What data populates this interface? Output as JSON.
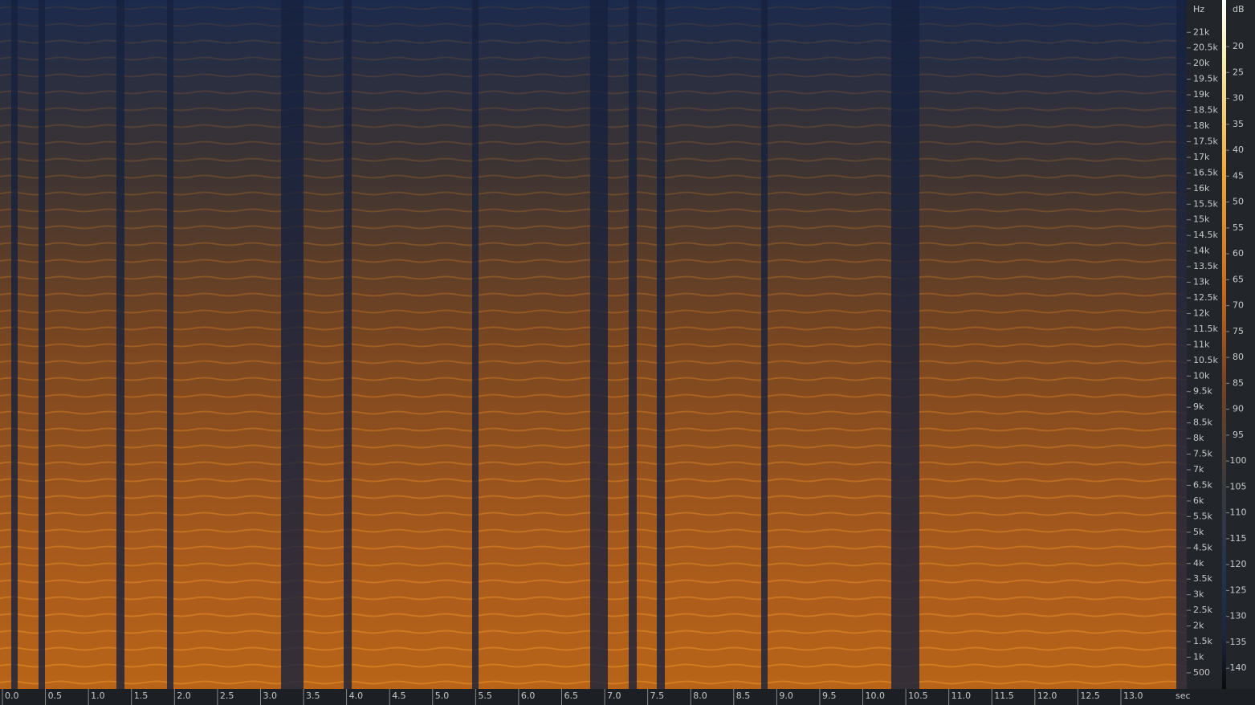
{
  "chart_data": {
    "type": "spectrogram",
    "x_label": "sec",
    "y_label": "Hz",
    "colorbar_label": "dB",
    "xlim": [
      0,
      13.77
    ],
    "ylim": [
      0,
      22050
    ],
    "zlim": [
      11,
      144
    ],
    "xticks": [
      {
        "value": 0,
        "label": "0.0"
      },
      0.5,
      {
        "value": 1,
        "label": "1.0"
      },
      1.5,
      {
        "value": 2,
        "label": "2.0"
      },
      2.5,
      {
        "value": 3,
        "label": "3.0"
      },
      3.5,
      {
        "value": 4,
        "label": "4.0"
      },
      4.5,
      {
        "value": 5,
        "label": "5.0"
      },
      5.5,
      {
        "value": 6,
        "label": "6.0"
      },
      6.5,
      {
        "value": 7,
        "label": "7.0"
      },
      7.5,
      {
        "value": 8,
        "label": "8.0"
      },
      8.5,
      {
        "value": 9,
        "label": "9.0"
      },
      9.5,
      {
        "value": 10,
        "label": "10.0"
      },
      10.5,
      {
        "value": 11,
        "label": "11.0"
      },
      11.5,
      {
        "value": 12,
        "label": "12.0"
      },
      12.5,
      {
        "value": 13,
        "label": "13.0"
      }
    ],
    "yticks": [
      500,
      {
        "value": 1000,
        "label": "1k"
      },
      {
        "value": 1500,
        "label": "1.5k"
      },
      {
        "value": 2000,
        "label": "2k"
      },
      {
        "value": 2500,
        "label": "2.5k"
      },
      {
        "value": 3000,
        "label": "3k"
      },
      {
        "value": 3500,
        "label": "3.5k"
      },
      {
        "value": 4000,
        "label": "4k"
      },
      {
        "value": 4500,
        "label": "4.5k"
      },
      {
        "value": 5000,
        "label": "5k"
      },
      {
        "value": 5500,
        "label": "5.5k"
      },
      {
        "value": 6000,
        "label": "6k"
      },
      {
        "value": 6500,
        "label": "6.5k"
      },
      {
        "value": 7000,
        "label": "7k"
      },
      {
        "value": 7500,
        "label": "7.5k"
      },
      {
        "value": 8000,
        "label": "8k"
      },
      {
        "value": 8500,
        "label": "8.5k"
      },
      {
        "value": 9000,
        "label": "9k"
      },
      {
        "value": 9500,
        "label": "9.5k"
      },
      {
        "value": 10000,
        "label": "10k"
      },
      {
        "value": 10500,
        "label": "10.5k"
      },
      {
        "value": 11000,
        "label": "11k"
      },
      {
        "value": 11500,
        "label": "11.5k"
      },
      {
        "value": 12000,
        "label": "12k"
      },
      {
        "value": 12500,
        "label": "12.5k"
      },
      {
        "value": 13000,
        "label": "13k"
      },
      {
        "value": 13500,
        "label": "13.5k"
      },
      {
        "value": 14000,
        "label": "14k"
      },
      {
        "value": 14500,
        "label": "14.5k"
      },
      {
        "value": 15000,
        "label": "15k"
      },
      {
        "value": 15500,
        "label": "15.5k"
      },
      {
        "value": 16000,
        "label": "16k"
      },
      {
        "value": 16500,
        "label": "16.5k"
      },
      {
        "value": 17000,
        "label": "17k"
      },
      {
        "value": 17500,
        "label": "17.5k"
      },
      {
        "value": 18000,
        "label": "18k"
      },
      {
        "value": 18500,
        "label": "18.5k"
      },
      {
        "value": 19000,
        "label": "19k"
      },
      {
        "value": 19500,
        "label": "19.5k"
      },
      {
        "value": 20000,
        "label": "20k"
      },
      {
        "value": 20500,
        "label": "20.5k"
      },
      {
        "value": 21000,
        "label": "21k"
      }
    ],
    "colorbar_ticks": [
      20,
      25,
      30,
      35,
      40,
      45,
      50,
      55,
      60,
      65,
      70,
      75,
      80,
      85,
      90,
      95,
      100,
      105,
      110,
      115,
      120,
      125,
      130,
      135,
      140
    ]
  }
}
